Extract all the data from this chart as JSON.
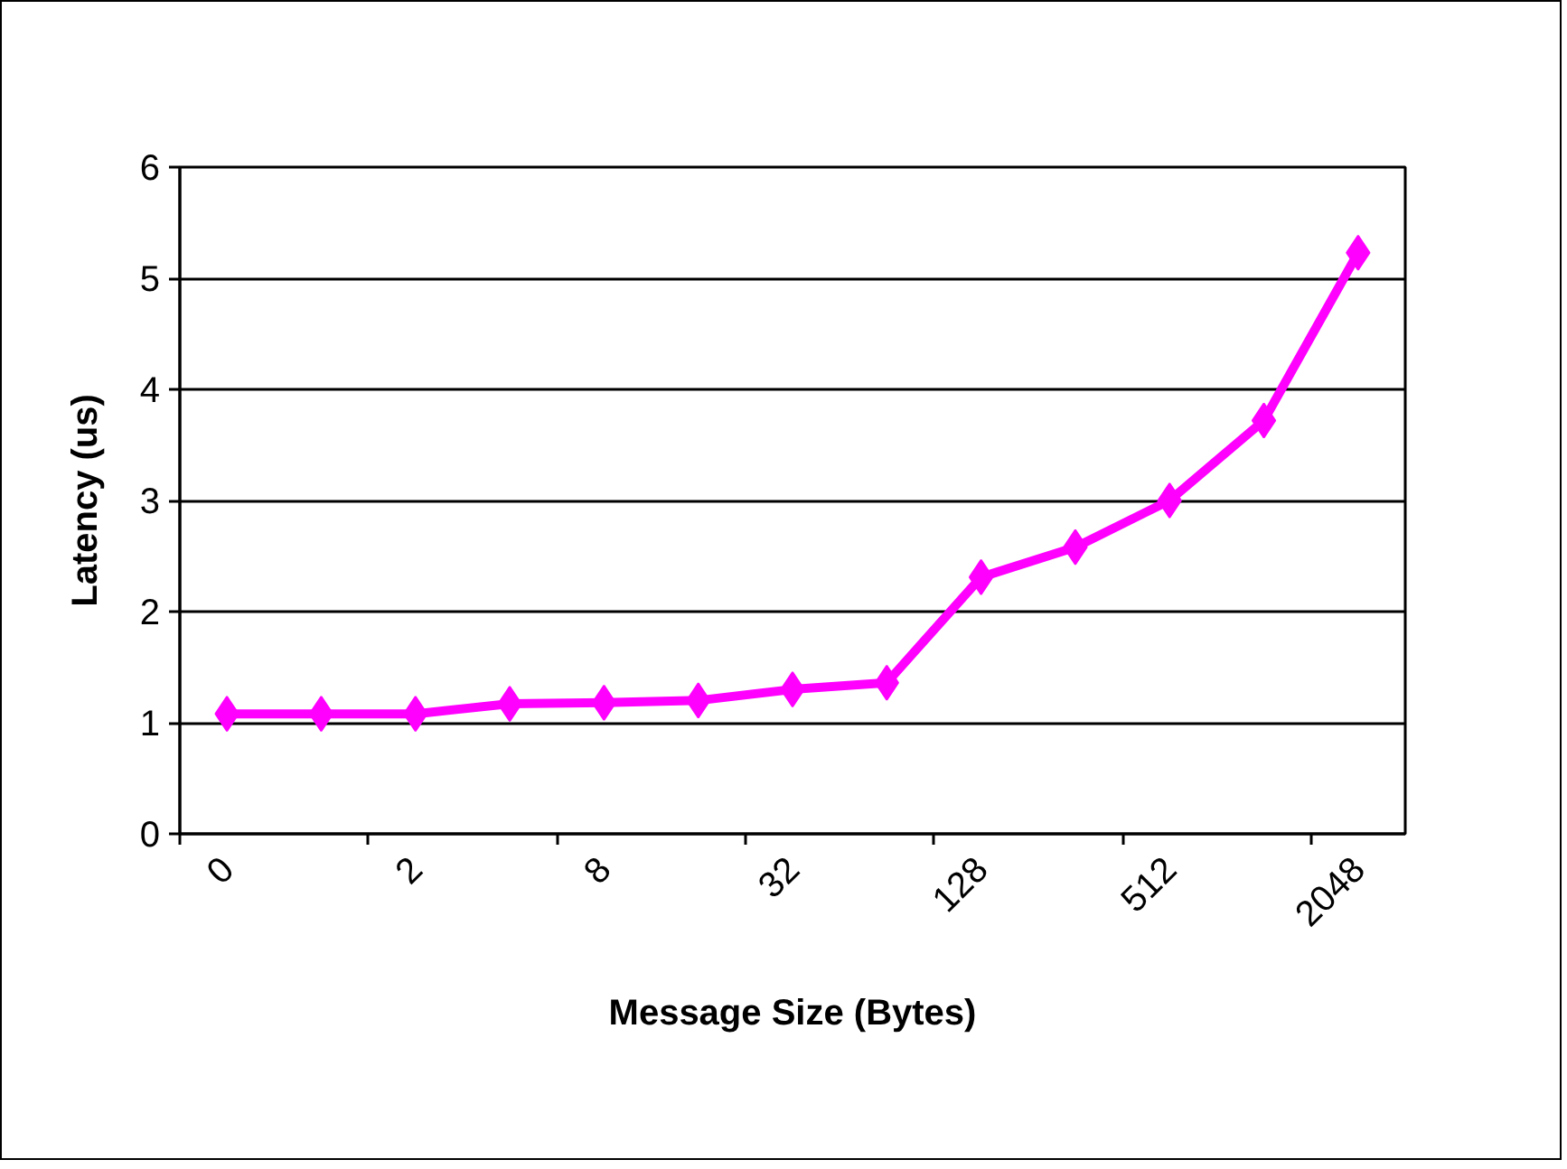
{
  "chart_data": {
    "type": "line",
    "xlabel": "Message Size (Bytes)",
    "ylabel": "Latency (us)",
    "categories": [
      "0",
      null,
      "2",
      null,
      "8",
      null,
      "32",
      null,
      "128",
      null,
      "512",
      null,
      "2048"
    ],
    "series": [
      {
        "color": "#ff00ff",
        "values": [
          1.08,
          1.08,
          1.08,
          1.17,
          1.18,
          1.2,
          1.3,
          1.36,
          2.31,
          2.58,
          3.0,
          3.72,
          5.23
        ]
      }
    ],
    "ylim": [
      0,
      6
    ],
    "yticks": [
      0,
      1,
      2,
      3,
      4,
      5,
      6
    ],
    "grid": "y",
    "marker": "diamond",
    "line_style": "solid"
  }
}
